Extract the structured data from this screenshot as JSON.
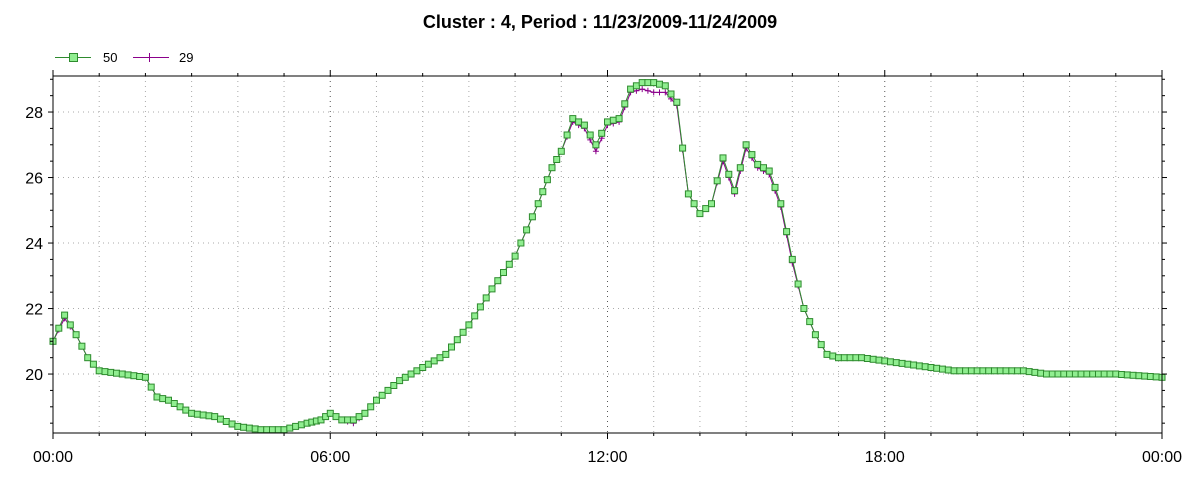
{
  "chart_data": {
    "type": "line",
    "title": "Cluster : 4, Period : 11/23/2009-11/24/2009",
    "xlabel": "",
    "ylabel": "",
    "x_ticks": [
      "00:00",
      "06:00",
      "12:00",
      "18:00",
      "00:00"
    ],
    "y_ticks": [
      "20",
      "22",
      "24",
      "26",
      "28"
    ],
    "ylim": [
      18.2,
      29.1
    ],
    "xlim_hours": [
      0,
      24
    ],
    "grid": true,
    "legend_position": "top-left",
    "series": [
      {
        "name": "50",
        "color": "#2e8b2e",
        "fill": "#90ee90",
        "marker": "square",
        "x_hours": [
          0,
          0.25,
          0.5,
          0.75,
          1,
          1.5,
          2,
          2.25,
          2.5,
          2.75,
          3,
          3.5,
          4,
          4.5,
          5,
          5.5,
          5.8,
          6,
          6.25,
          6.5,
          6.75,
          7,
          7.5,
          8,
          8.5,
          9,
          9.5,
          10,
          10.5,
          10.8,
          11,
          11.25,
          11.5,
          11.75,
          12,
          12.25,
          12.5,
          12.75,
          13,
          13.25,
          13.5,
          13.75,
          14,
          14.25,
          14.5,
          14.75,
          15,
          15.25,
          15.5,
          15.75,
          16,
          16.25,
          16.5,
          16.75,
          17,
          17.5,
          18,
          18.5,
          19,
          19.5,
          20,
          20.5,
          21,
          21.5,
          22,
          22.5,
          23,
          23.5,
          24
        ],
        "values": [
          21.0,
          21.8,
          21.2,
          20.5,
          20.1,
          20.0,
          19.9,
          19.3,
          19.2,
          19.0,
          18.8,
          18.7,
          18.4,
          18.3,
          18.3,
          18.5,
          18.6,
          18.8,
          18.6,
          18.6,
          18.8,
          19.2,
          19.8,
          20.2,
          20.6,
          21.5,
          22.6,
          23.6,
          25.2,
          26.3,
          26.8,
          27.8,
          27.6,
          27.0,
          27.7,
          27.8,
          28.7,
          28.9,
          28.9,
          28.8,
          28.3,
          25.5,
          24.9,
          25.2,
          26.6,
          25.6,
          27.0,
          26.4,
          26.2,
          25.2,
          23.5,
          22.0,
          21.2,
          20.6,
          20.5,
          20.5,
          20.4,
          20.3,
          20.2,
          20.1,
          20.1,
          20.1,
          20.1,
          20.0,
          20.0,
          20.0,
          20.0,
          19.95,
          19.9
        ]
      },
      {
        "name": "29",
        "color": "#8b008b",
        "marker": "plus",
        "x_hours": [
          0,
          0.25,
          0.5,
          0.75,
          1,
          1.5,
          2,
          2.25,
          2.5,
          2.75,
          3,
          3.5,
          4,
          4.5,
          5,
          5.5,
          5.8,
          6,
          6.25,
          6.5,
          6.75,
          7,
          7.5,
          8,
          8.5,
          9,
          9.5,
          10,
          10.5,
          10.8,
          11,
          11.25,
          11.5,
          11.75,
          12,
          12.25,
          12.5,
          12.75,
          13,
          13.25,
          13.5,
          13.75,
          14,
          14.25,
          14.5,
          14.75,
          15,
          15.25,
          15.5,
          15.75,
          16,
          16.25,
          16.5,
          16.75,
          17,
          17.5,
          18,
          18.5,
          19,
          19.5,
          20,
          20.5,
          21,
          21.5,
          22,
          22.5,
          23,
          23.5,
          24
        ],
        "values": [
          21.0,
          21.7,
          21.2,
          20.5,
          20.1,
          20.0,
          19.9,
          19.3,
          19.2,
          19.0,
          18.8,
          18.7,
          18.4,
          18.3,
          18.3,
          18.5,
          18.6,
          18.8,
          18.6,
          18.5,
          18.8,
          19.2,
          19.8,
          20.2,
          20.6,
          21.5,
          22.6,
          23.6,
          25.2,
          26.3,
          26.8,
          27.7,
          27.5,
          26.8,
          27.6,
          27.7,
          28.6,
          28.7,
          28.6,
          28.6,
          28.2,
          25.5,
          24.9,
          25.2,
          26.5,
          25.5,
          26.9,
          26.3,
          26.1,
          25.1,
          23.4,
          22.0,
          21.2,
          20.6,
          20.5,
          20.5,
          20.4,
          20.3,
          20.2,
          20.1,
          20.1,
          20.1,
          20.1,
          20.0,
          20.0,
          20.0,
          20.0,
          19.95,
          19.9
        ]
      }
    ]
  }
}
